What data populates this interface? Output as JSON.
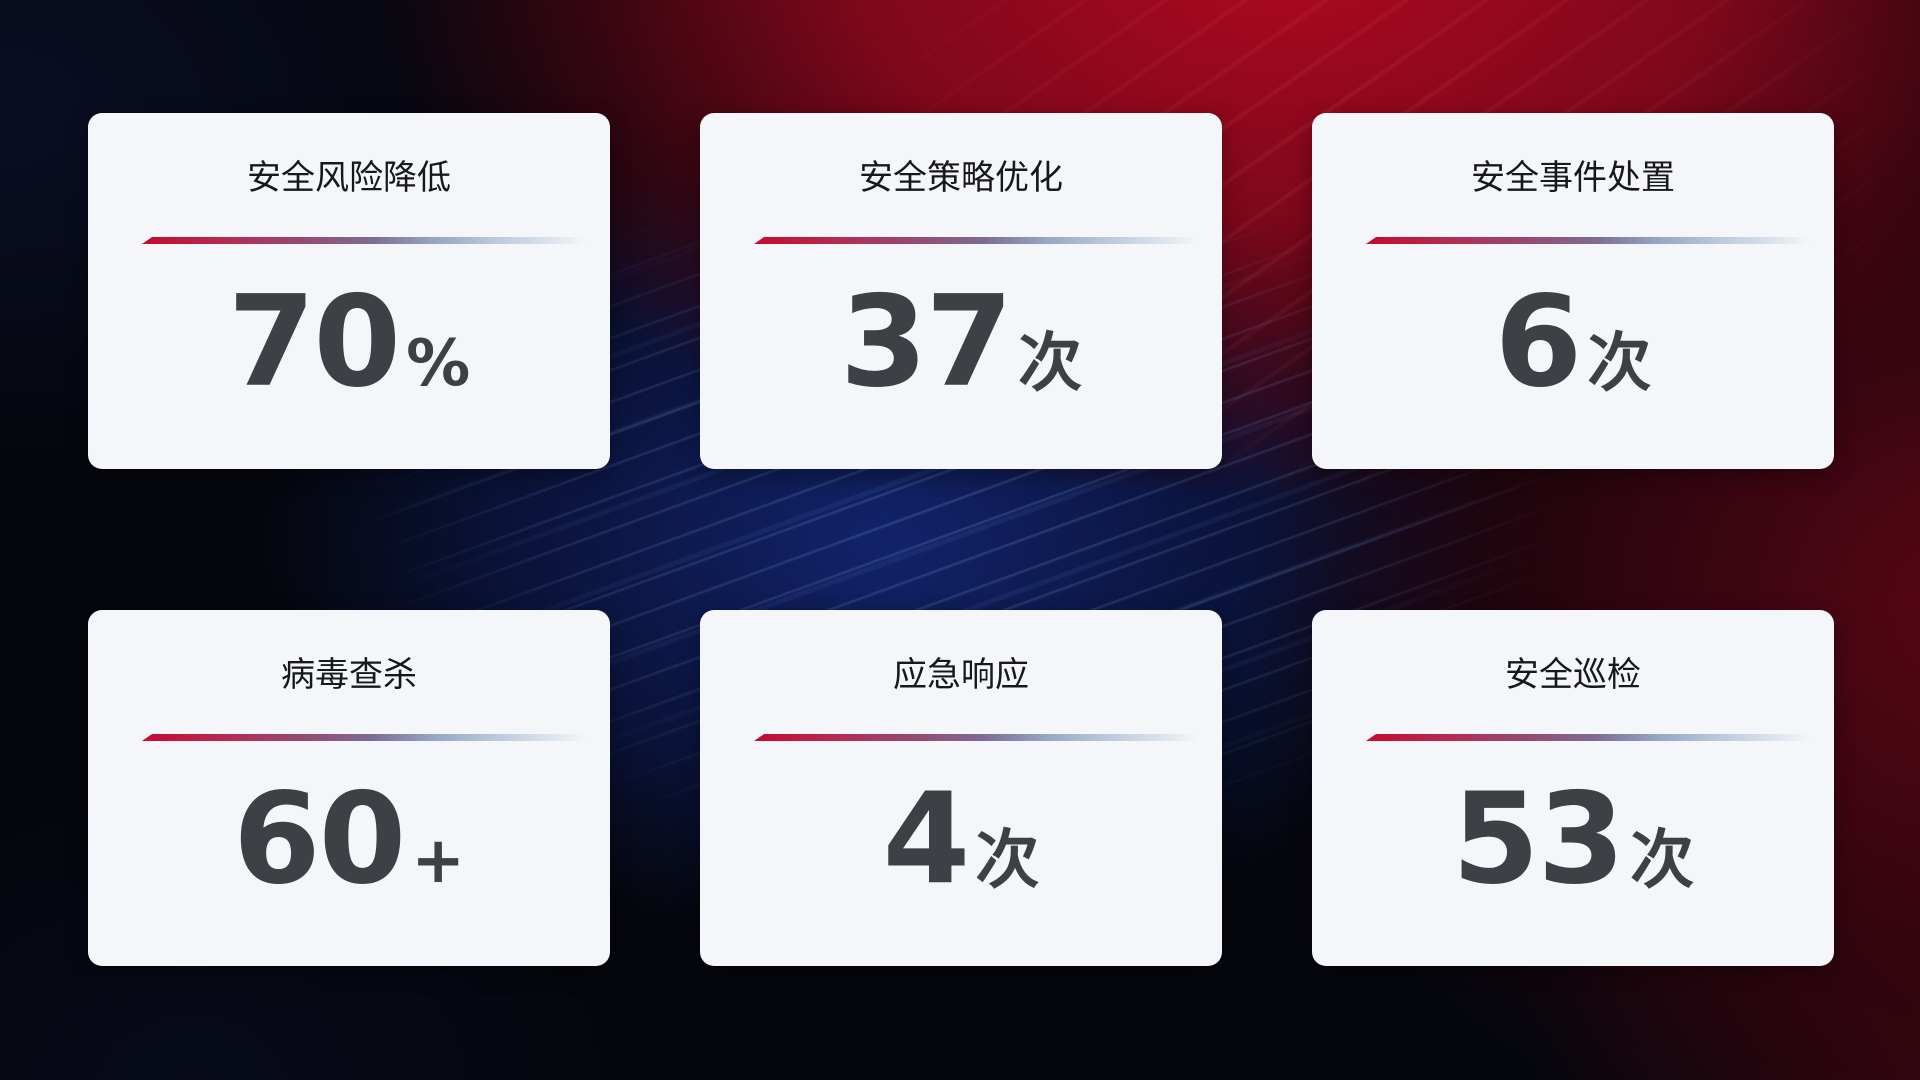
{
  "theme": {
    "background_base": "#05060d",
    "background_accent_red": "#a50b22",
    "background_accent_blue": "#13265f",
    "card_background": "#f5f6f9",
    "title_color": "#17181a",
    "value_color": "#3e4045",
    "divider_gradient_start": "#c7092f",
    "divider_gradient_end": "#d3dce8"
  },
  "cards": [
    {
      "title": "安全风险降低",
      "value": "70",
      "unit": "%"
    },
    {
      "title": "安全策略优化",
      "value": "37",
      "unit": "次"
    },
    {
      "title": "安全事件处置",
      "value": "6",
      "unit": "次"
    },
    {
      "title": "病毒查杀",
      "value": "60",
      "unit": "+"
    },
    {
      "title": "应急响应",
      "value": "4",
      "unit": "次"
    },
    {
      "title": "安全巡检",
      "value": "53",
      "unit": "次"
    }
  ]
}
